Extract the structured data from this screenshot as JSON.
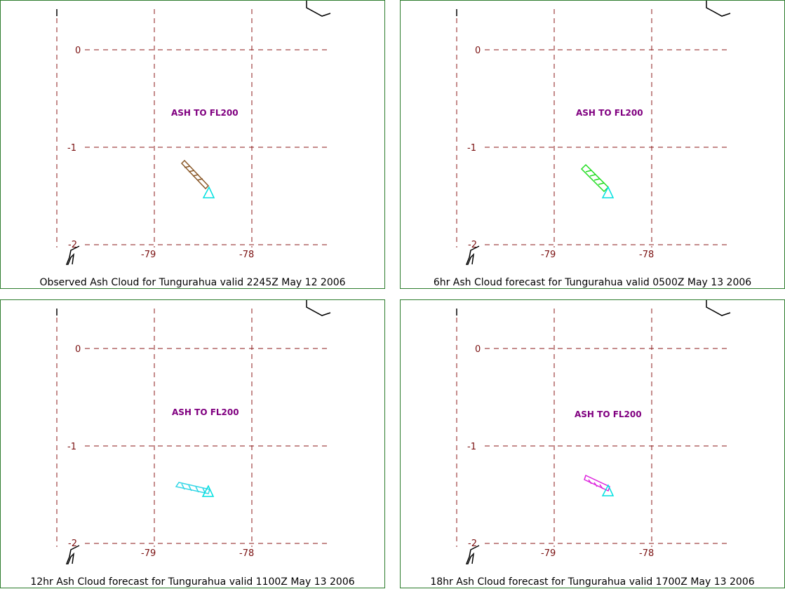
{
  "panels": [
    {
      "caption": "Observed Ash Cloud for Tungurahua valid 2245Z May 12 2006",
      "ash_label": "ASH TO FL200",
      "cloud_color": "#8b5a2b",
      "lat_labels": [
        "0",
        "-1",
        "-2"
      ],
      "lon_labels": [
        "-79",
        "-78"
      ]
    },
    {
      "caption": "6hr Ash Cloud forecast for Tungurahua valid 0500Z May 13 2006",
      "ash_label": "ASH TO FL200",
      "cloud_color": "#22dd22",
      "lat_labels": [
        "0",
        "-1",
        "-2"
      ],
      "lon_labels": [
        "-79",
        "-78"
      ]
    },
    {
      "caption": "12hr Ash Cloud forecast for Tungurahua valid 1100Z May 13 2006",
      "ash_label": "ASH TO FL200",
      "cloud_color": "#33d6e6",
      "lat_labels": [
        "0",
        "-1",
        "-2"
      ],
      "lon_labels": [
        "-79",
        "-78"
      ]
    },
    {
      "caption": "18hr Ash Cloud forecast for Tungurahua valid 1700Z May 13 2006",
      "ash_label": "ASH TO FL200",
      "cloud_color": "#dd22dd",
      "lat_labels": [
        "0",
        "-1",
        "-2"
      ],
      "lon_labels": [
        "-79",
        "-78"
      ]
    }
  ],
  "colors": {
    "grid": "#8b1a1a",
    "volcano_marker": "#00e0e0",
    "panel_border": "#2e7d2e",
    "coast": "#000000"
  },
  "icons": [
    "volcano-triangle-icon"
  ]
}
